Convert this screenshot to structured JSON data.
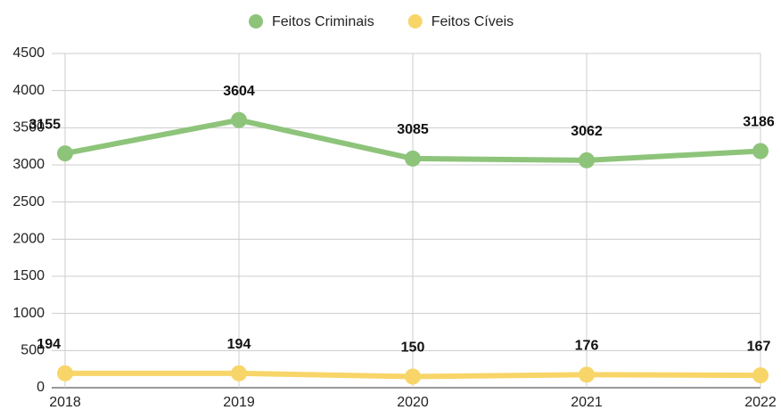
{
  "chart_data": {
    "type": "line",
    "categories": [
      "2018",
      "2019",
      "2020",
      "2021",
      "2022"
    ],
    "series": [
      {
        "name": "Feitos Criminais",
        "color": "#8dc47a",
        "values": [
          3155,
          3604,
          3085,
          3062,
          3186
        ]
      },
      {
        "name": "Feitos Cíveis",
        "color": "#f8d568",
        "values": [
          194,
          194,
          150,
          176,
          167
        ]
      }
    ],
    "ylim": [
      0,
      4500
    ],
    "yticks": [
      0,
      500,
      1000,
      1500,
      2000,
      2500,
      3000,
      3500,
      4000,
      4500
    ],
    "grid": true,
    "legend": "top"
  }
}
